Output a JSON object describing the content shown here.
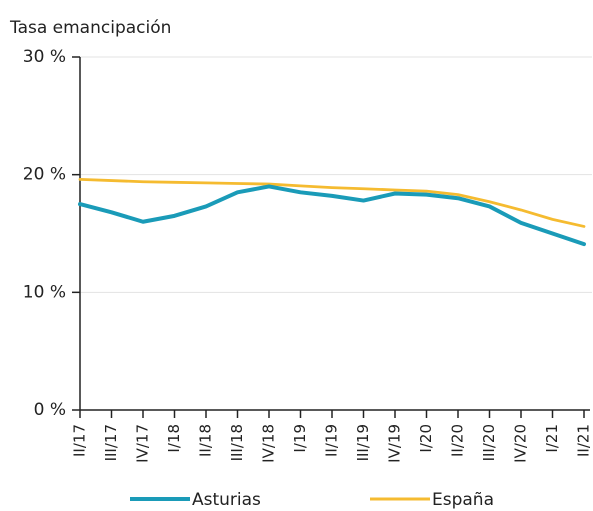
{
  "chart_data": {
    "type": "line",
    "y_label": "Tasa emancipación",
    "categories": [
      "II/17",
      "III/17",
      "IV/17",
      "I/18",
      "II/18",
      "III/18",
      "IV/18",
      "I/19",
      "II/19",
      "III/19",
      "IV/19",
      "I/20",
      "II/20",
      "III/20",
      "IV/20",
      "I/21",
      "II/21"
    ],
    "series": [
      {
        "name": "Asturias",
        "color": "#1a9bb8",
        "values": [
          17.5,
          16.8,
          16.0,
          16.5,
          17.3,
          18.5,
          19.0,
          18.5,
          18.2,
          17.8,
          18.4,
          18.3,
          18.0,
          17.3,
          15.9,
          15.0,
          14.1
        ]
      },
      {
        "name": "España",
        "color": "#f5bb30",
        "values": [
          19.6,
          19.5,
          19.4,
          19.35,
          19.3,
          19.25,
          19.2,
          19.05,
          18.9,
          18.8,
          18.7,
          18.6,
          18.3,
          17.7,
          17.0,
          16.2,
          15.6
        ]
      }
    ],
    "ylim": [
      0,
      30
    ],
    "yticks": [
      {
        "value": 0,
        "label": "0 %"
      },
      {
        "value": 10,
        "label": "10 %"
      },
      {
        "value": 20,
        "label": "20 %"
      },
      {
        "value": 30,
        "label": "30 %"
      }
    ],
    "grid": true,
    "legend": "bottom"
  }
}
